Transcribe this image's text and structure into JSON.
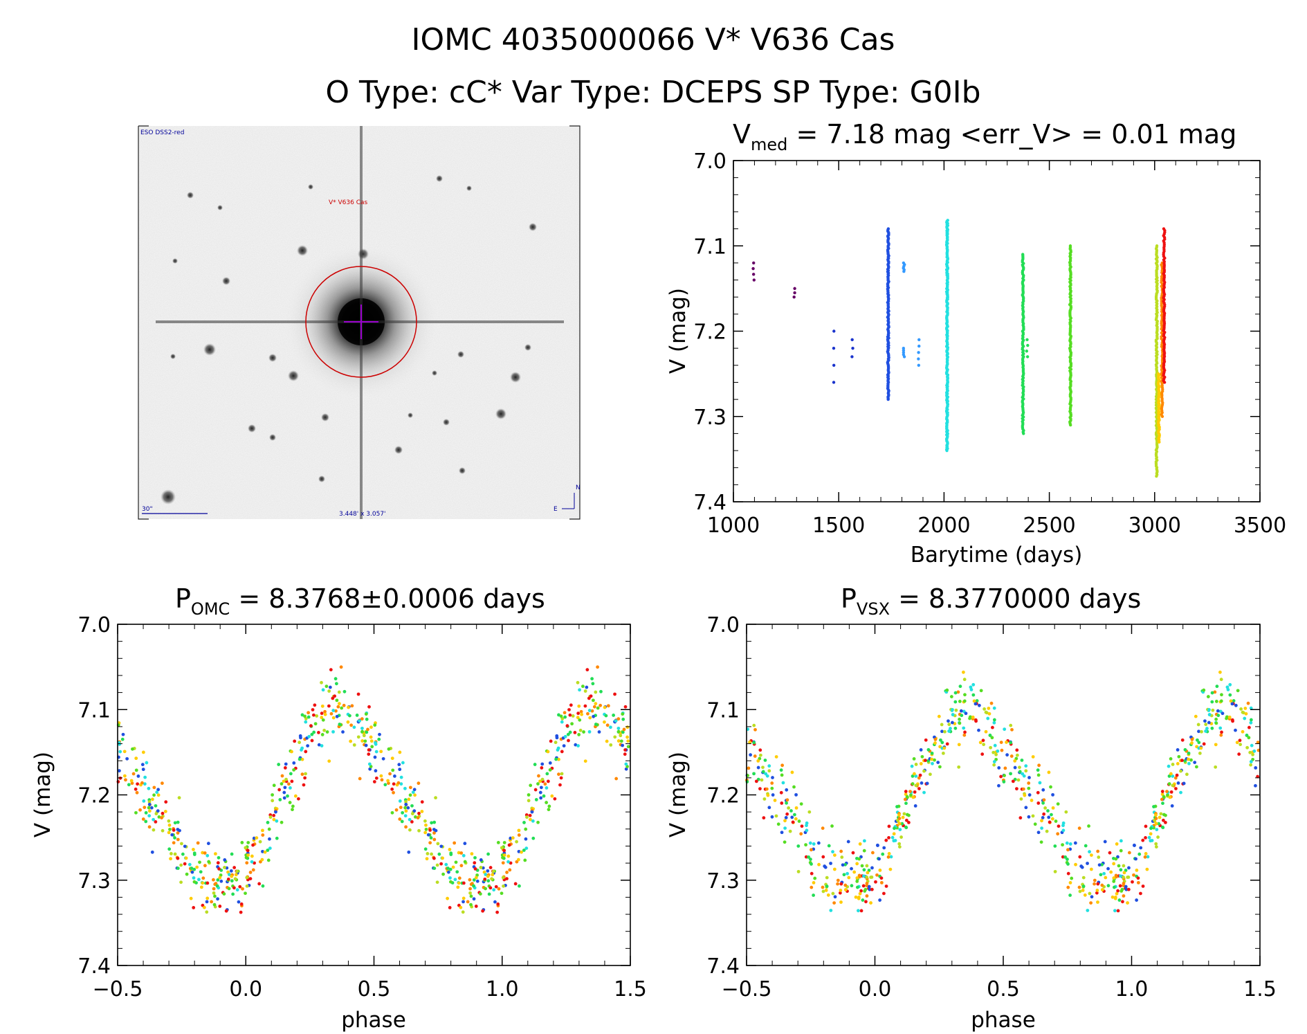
{
  "figure": {
    "title_line1": "IOMC 4035000066   V* V636 Cas",
    "title_line2": "O Type: cC*  Var Type: DCEPS  SP Type: G0Ib"
  },
  "image_panel": {
    "survey_label": "ESO DSS2-red",
    "target_label": "V* V636 Cas",
    "scale_label": "30\"",
    "fov_label": "3.448' x 3.057'",
    "north_label": "N",
    "east_label": "E",
    "colors": {
      "circle": "#cc0000",
      "cross": "#9900cc",
      "text_blue": "#000099",
      "text_red": "#cc0000"
    }
  },
  "panels": {
    "lightcurve": {
      "title_main": "V",
      "title_sub": "med",
      "title_rest": " = 7.18 mag <err_V> = 0.01 mag",
      "xlabel": "Barytime (days)",
      "ylabel": "V (mag)",
      "xticks": [
        "1000",
        "1500",
        "2000",
        "2500",
        "3000",
        "3500"
      ],
      "yticks": [
        "7.0",
        "7.1",
        "7.2",
        "7.3",
        "7.4"
      ]
    },
    "phase_omc": {
      "title_main": "P",
      "title_sub": "OMC",
      "title_rest": " = 8.3768±0.0006 days",
      "xlabel": "phase",
      "ylabel": "V (mag)",
      "xticks": [
        "−0.5",
        "0.0",
        "0.5",
        "1.0",
        "1.5"
      ],
      "yticks": [
        "7.0",
        "7.1",
        "7.2",
        "7.3",
        "7.4"
      ]
    },
    "phase_vsx": {
      "title_main": "P",
      "title_sub": "VSX",
      "title_rest": " = 8.3770000 days",
      "xlabel": "phase",
      "ylabel": "V (mag)",
      "xticks": [
        "−0.5",
        "0.0",
        "0.5",
        "1.0",
        "1.5"
      ],
      "yticks": [
        "7.0",
        "7.1",
        "7.2",
        "7.3",
        "7.4"
      ]
    }
  },
  "chart_data": [
    {
      "type": "scatter",
      "title": "V_med = 7.18 mag <err_V> = 0.01 mag",
      "xlabel": "Barytime (days)",
      "ylabel": "V (mag)",
      "xlim": [
        1000,
        3500
      ],
      "ylim": [
        7.4,
        7.0
      ],
      "y_inverted": true,
      "grid": false,
      "color_scale": "rainbow by barytime (purple→blue→cyan→green→yellow→orange→red)",
      "epochs": [
        {
          "x": 1095,
          "ymin": 7.12,
          "ymax": 7.14,
          "n": 4,
          "color": "#660066"
        },
        {
          "x": 1290,
          "ymin": 7.15,
          "ymax": 7.16,
          "n": 3,
          "color": "#660066"
        },
        {
          "x": 1475,
          "ymin": 7.2,
          "ymax": 7.26,
          "n": 4,
          "color": "#1a33cc"
        },
        {
          "x": 1565,
          "ymin": 7.21,
          "ymax": 7.23,
          "n": 3,
          "color": "#1a33cc"
        },
        {
          "x": 1735,
          "ymin": 7.08,
          "ymax": 7.28,
          "n": 140,
          "color": "#1f4fe0"
        },
        {
          "x": 1810,
          "ymin": 7.12,
          "ymax": 7.13,
          "n": 6,
          "color": "#3399ff"
        },
        {
          "x": 1810,
          "ymin": 7.22,
          "ymax": 7.23,
          "n": 5,
          "color": "#3399ff"
        },
        {
          "x": 1880,
          "ymin": 7.21,
          "ymax": 7.24,
          "n": 5,
          "color": "#3399ff"
        },
        {
          "x": 2015,
          "ymin": 7.07,
          "ymax": 7.34,
          "n": 220,
          "color": "#22e0e0"
        },
        {
          "x": 2375,
          "ymin": 7.11,
          "ymax": 7.32,
          "n": 120,
          "color": "#22dd55"
        },
        {
          "x": 2395,
          "ymin": 7.21,
          "ymax": 7.23,
          "n": 4,
          "color": "#22dd55"
        },
        {
          "x": 2600,
          "ymin": 7.1,
          "ymax": 7.31,
          "n": 120,
          "color": "#55dd22"
        },
        {
          "x": 3010,
          "ymin": 7.1,
          "ymax": 7.37,
          "n": 160,
          "color": "#bbdd22"
        },
        {
          "x": 3020,
          "ymin": 7.25,
          "ymax": 7.33,
          "n": 60,
          "color": "#ffcc00"
        },
        {
          "x": 3035,
          "ymin": 7.12,
          "ymax": 7.3,
          "n": 80,
          "color": "#ff8800"
        },
        {
          "x": 3045,
          "ymin": 7.08,
          "ymax": 7.26,
          "n": 90,
          "color": "#ee1111"
        }
      ]
    },
    {
      "type": "scatter",
      "title": "P_OMC = 8.3768±0.0006 days",
      "xlabel": "phase",
      "ylabel": "V (mag)",
      "xlim": [
        -0.5,
        1.5
      ],
      "ylim": [
        7.4,
        7.0
      ],
      "y_inverted": true,
      "grid": false,
      "mean_curve": {
        "phase": [
          0.0,
          0.05,
          0.1,
          0.15,
          0.2,
          0.25,
          0.3,
          0.35,
          0.4,
          0.45,
          0.5,
          0.55,
          0.6,
          0.65,
          0.7,
          0.75,
          0.8,
          0.85,
          0.9,
          0.95
        ],
        "v": [
          7.29,
          7.27,
          7.23,
          7.19,
          7.16,
          7.13,
          7.11,
          7.1,
          7.1,
          7.12,
          7.15,
          7.17,
          7.19,
          7.21,
          7.24,
          7.27,
          7.29,
          7.3,
          7.3,
          7.3
        ]
      },
      "scatter_v": 0.02,
      "series_colors": [
        "#1f4fe0",
        "#22e0e0",
        "#22dd55",
        "#55dd22",
        "#bbdd22",
        "#ffcc00",
        "#ff8800",
        "#ee1111"
      ]
    },
    {
      "type": "scatter",
      "title": "P_VSX = 8.3770000 days",
      "xlabel": "phase",
      "ylabel": "V (mag)",
      "xlim": [
        -0.5,
        1.5
      ],
      "ylim": [
        7.4,
        7.0
      ],
      "y_inverted": true,
      "grid": false,
      "mean_curve": {
        "phase": [
          0.0,
          0.05,
          0.1,
          0.15,
          0.2,
          0.25,
          0.3,
          0.35,
          0.4,
          0.45,
          0.5,
          0.55,
          0.6,
          0.65,
          0.7,
          0.75,
          0.8,
          0.85,
          0.9,
          0.95
        ],
        "v": [
          7.29,
          7.27,
          7.23,
          7.19,
          7.16,
          7.13,
          7.11,
          7.1,
          7.1,
          7.12,
          7.15,
          7.17,
          7.19,
          7.21,
          7.24,
          7.27,
          7.29,
          7.3,
          7.3,
          7.3
        ]
      },
      "scatter_v": 0.02,
      "series_colors": [
        "#1f4fe0",
        "#22e0e0",
        "#22dd55",
        "#55dd22",
        "#bbdd22",
        "#ffcc00",
        "#ff8800",
        "#ee1111"
      ]
    }
  ]
}
